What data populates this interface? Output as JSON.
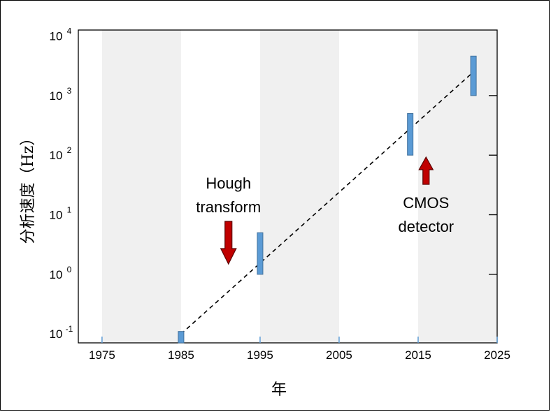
{
  "chart_data": {
    "type": "range-bar",
    "title": "",
    "xlabel": "年",
    "ylabel": "分析速度（Hz）",
    "xlim": [
      1972,
      2025
    ],
    "ylim_log10": [
      -1.15,
      4.1
    ],
    "y_scale": "log",
    "x_ticks": [
      "1975",
      "1985",
      "1995",
      "2005",
      "2015",
      "2025"
    ],
    "y_ticks": [
      {
        "base": "10",
        "exp": "-1"
      },
      {
        "base": "10",
        "exp": "0"
      },
      {
        "base": "10",
        "exp": "1"
      },
      {
        "base": "10",
        "exp": "2"
      },
      {
        "base": "10",
        "exp": "3"
      },
      {
        "base": "10",
        "exp": "4"
      }
    ],
    "shaded_x_bands": [
      [
        1975,
        1985
      ],
      [
        1995,
        2005
      ],
      [
        2015,
        2025
      ]
    ],
    "bars": [
      {
        "x": 1985,
        "y_low": 0.07,
        "y_high": 0.11
      },
      {
        "x": 1995,
        "y_low": 1,
        "y_high": 5
      },
      {
        "x": 2014,
        "y_low": 100,
        "y_high": 500
      },
      {
        "x": 2022,
        "y_low": 1000,
        "y_high": 4600
      }
    ],
    "trend_line": {
      "x": [
        1985,
        2022
      ],
      "y": [
        0.1,
        2500
      ],
      "style": "dashed"
    },
    "annotations": [
      {
        "lines": [
          "Hough",
          "transform"
        ],
        "arrow_x": 1991,
        "arrow_direction": "down"
      },
      {
        "lines": [
          "CMOS",
          "detector"
        ],
        "arrow_x": 2016,
        "arrow_direction": "up"
      }
    ],
    "colors": {
      "bar": "#5b9bd5",
      "bar_edge": "#41719c",
      "band": "#f0f0f0",
      "arrow": "#c00000",
      "arrow_edge": "#5a0000",
      "tick": "#5b9bd5"
    }
  }
}
